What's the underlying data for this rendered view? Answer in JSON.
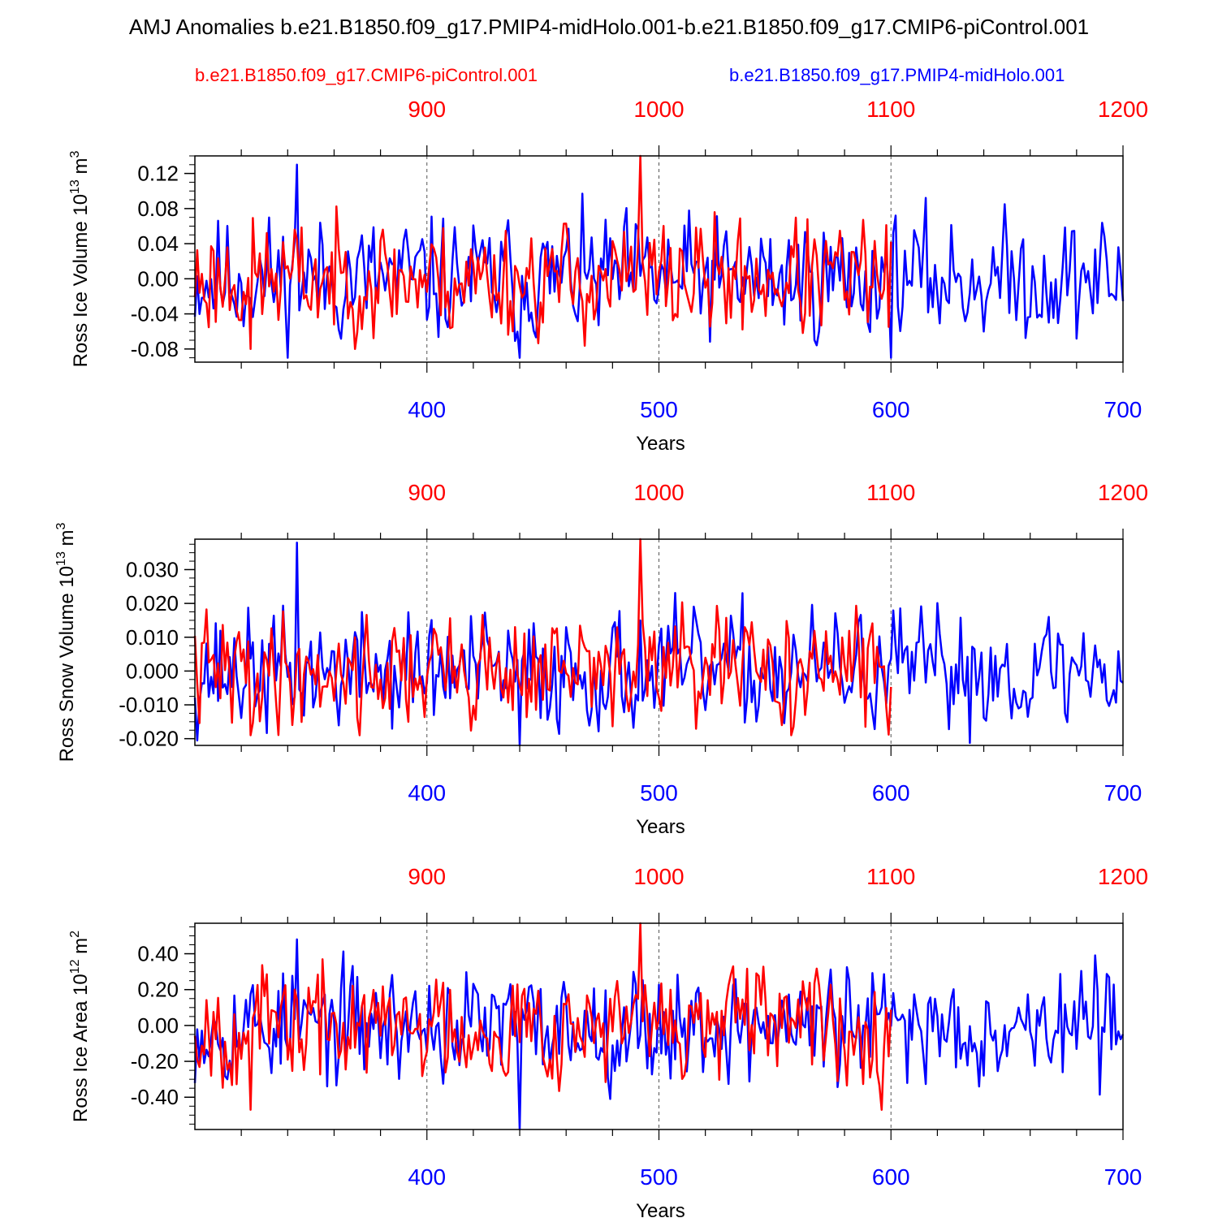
{
  "title": "AMJ Anomalies b.e21.B1850.f09_g17.PMIP4-midHolo.001-b.e21.B1850.f09_g17.CMIP6-piControl.001",
  "legend": {
    "red_label": "b.e21.B1850.f09_g17.CMIP6-piControl.001",
    "blue_label": "b.e21.B1850.f09_g17.PMIP4-midHolo.001"
  },
  "colors": {
    "red": "#ff0000",
    "blue": "#0000ff",
    "axis": "#000000",
    "grid": "#555555"
  },
  "chart_data": [
    {
      "type": "line",
      "ylabel_main": "Ross Ice Volume 10",
      "ylabel_sup": "13",
      "ylabel_unit": " m",
      "ylabel_unit_sup": "3",
      "xlabel": "Years",
      "ylim": [
        -0.095,
        0.14
      ],
      "yticks": [
        -0.08,
        -0.04,
        0.0,
        0.04,
        0.08,
        0.12
      ],
      "yticklabels": [
        "-0.08",
        "-0.04",
        "0.00",
        "0.04",
        "0.08",
        "0.12"
      ],
      "yminor_step": 0.01,
      "xlim_blue": [
        300,
        700
      ],
      "xticks_blue": [
        400,
        500,
        600,
        700
      ],
      "xticks_red": [
        900,
        1000,
        1100,
        1200
      ],
      "series": [
        {
          "name": "b.e21.B1850.f09_g17.PMIP4-midHolo.001",
          "color": "#0000ff",
          "x_start": 300,
          "x_end": 700,
          "amp": 0.038,
          "min": -0.09,
          "max": 0.13,
          "seed": 11
        },
        {
          "name": "b.e21.B1850.f09_g17.CMIP6-piControl.001",
          "color": "#ff0000",
          "x_start": 300,
          "x_end": 600,
          "amp": 0.036,
          "min": -0.08,
          "max": 0.14,
          "seed": 23
        }
      ]
    },
    {
      "type": "line",
      "ylabel_main": "Ross Snow Volume 10",
      "ylabel_sup": "13",
      "ylabel_unit": " m",
      "ylabel_unit_sup": "3",
      "xlabel": "Years",
      "ylim": [
        -0.022,
        0.039
      ],
      "yticks": [
        -0.02,
        -0.01,
        0.0,
        0.01,
        0.02,
        0.03
      ],
      "yticklabels": [
        "-0.020",
        "-0.010",
        "0.000",
        "0.010",
        "0.020",
        "0.030"
      ],
      "yminor_step": 0.0025,
      "xlim_blue": [
        300,
        700
      ],
      "xticks_blue": [
        400,
        500,
        600,
        700
      ],
      "xticks_red": [
        900,
        1000,
        1100,
        1200
      ],
      "series": [
        {
          "name": "b.e21.B1850.f09_g17.PMIP4-midHolo.001",
          "color": "#0000ff",
          "x_start": 300,
          "x_end": 700,
          "amp": 0.0095,
          "min": -0.022,
          "max": 0.038,
          "seed": 37
        },
        {
          "name": "b.e21.B1850.f09_g17.CMIP6-piControl.001",
          "color": "#ff0000",
          "x_start": 300,
          "x_end": 600,
          "amp": 0.009,
          "min": -0.019,
          "max": 0.039,
          "seed": 41
        }
      ]
    },
    {
      "type": "line",
      "ylabel_main": "Ross Ice Area 10",
      "ylabel_sup": "12",
      "ylabel_unit": " m",
      "ylabel_unit_sup": "2",
      "xlabel": "Years",
      "ylim": [
        -0.58,
        0.57
      ],
      "yticks": [
        -0.4,
        -0.2,
        0.0,
        0.2,
        0.4
      ],
      "yticklabels": [
        "-0.40",
        "-0.20",
        "0.00",
        "0.20",
        "0.40"
      ],
      "yminor_step": 0.05,
      "xlim_blue": [
        300,
        700
      ],
      "xticks_blue": [
        400,
        500,
        600,
        700
      ],
      "xticks_red": [
        900,
        1000,
        1100,
        1200
      ],
      "series": [
        {
          "name": "b.e21.B1850.f09_g17.PMIP4-midHolo.001",
          "color": "#0000ff",
          "x_start": 300,
          "x_end": 700,
          "amp": 0.17,
          "min": -0.58,
          "max": 0.48,
          "seed": 53
        },
        {
          "name": "b.e21.B1850.f09_g17.CMIP6-piControl.001",
          "color": "#ff0000",
          "x_start": 300,
          "x_end": 600,
          "amp": 0.17,
          "min": -0.47,
          "max": 0.57,
          "seed": 67
        }
      ]
    }
  ]
}
